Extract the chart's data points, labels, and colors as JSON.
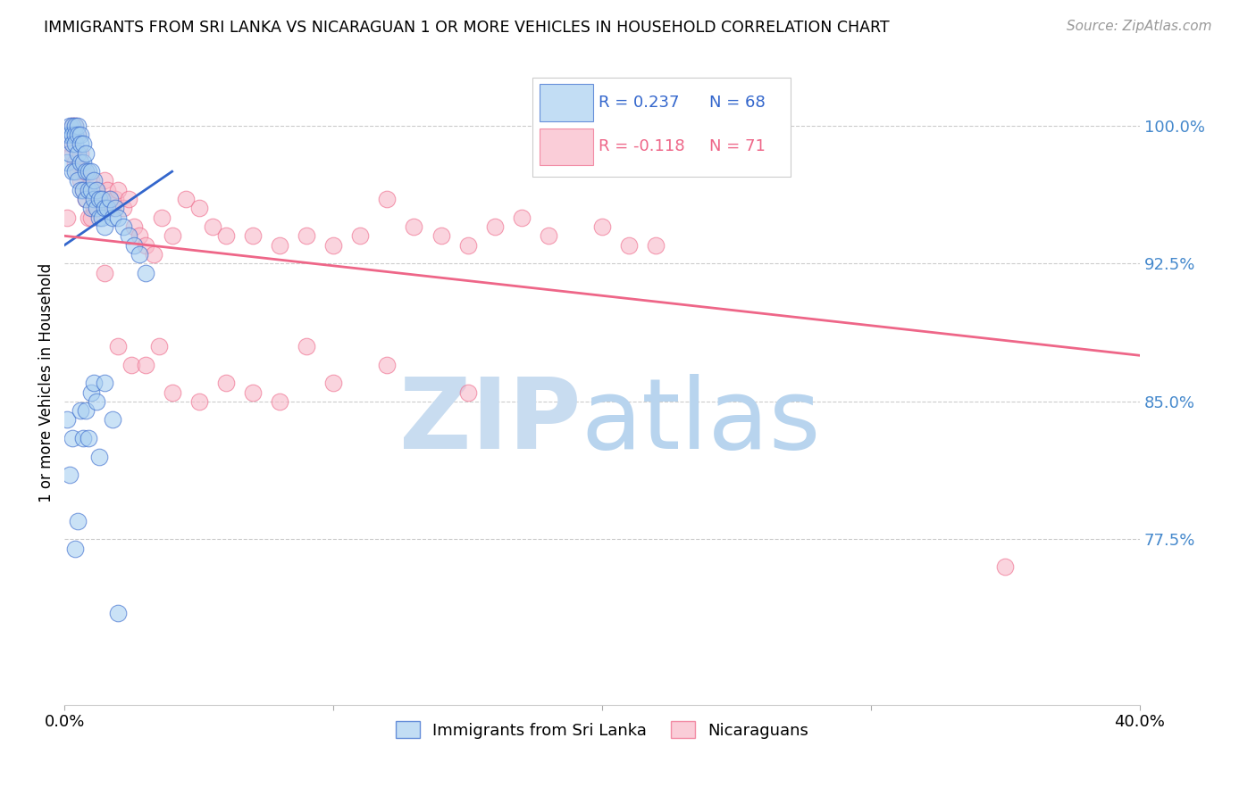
{
  "title": "IMMIGRANTS FROM SRI LANKA VS NICARAGUAN 1 OR MORE VEHICLES IN HOUSEHOLD CORRELATION CHART",
  "source": "Source: ZipAtlas.com",
  "ylabel": "1 or more Vehicles in Household",
  "ytick_labels": [
    "100.0%",
    "92.5%",
    "85.0%",
    "77.5%"
  ],
  "ytick_values": [
    1.0,
    0.925,
    0.85,
    0.775
  ],
  "xlim": [
    0.0,
    0.4
  ],
  "ylim": [
    0.685,
    1.035
  ],
  "color_blue": "#a8cff0",
  "color_pink": "#f8b8c8",
  "line_blue": "#3366cc",
  "line_pink": "#ee6688",
  "watermark_zip_color": "#c8dcf0",
  "watermark_atlas_color": "#b8d4ee",
  "sri_lanka_x": [
    0.001,
    0.001,
    0.002,
    0.002,
    0.002,
    0.003,
    0.003,
    0.003,
    0.003,
    0.004,
    0.004,
    0.004,
    0.004,
    0.005,
    0.005,
    0.005,
    0.005,
    0.006,
    0.006,
    0.006,
    0.006,
    0.007,
    0.007,
    0.007,
    0.008,
    0.008,
    0.008,
    0.009,
    0.009,
    0.01,
    0.01,
    0.01,
    0.011,
    0.011,
    0.012,
    0.012,
    0.013,
    0.013,
    0.014,
    0.014,
    0.015,
    0.015,
    0.016,
    0.017,
    0.018,
    0.019,
    0.02,
    0.022,
    0.024,
    0.026,
    0.028,
    0.03,
    0.001,
    0.002,
    0.003,
    0.004,
    0.005,
    0.006,
    0.007,
    0.008,
    0.009,
    0.01,
    0.011,
    0.012,
    0.013,
    0.015,
    0.018,
    0.02
  ],
  "sri_lanka_y": [
    0.995,
    0.98,
    1.0,
    0.995,
    0.985,
    1.0,
    0.995,
    0.99,
    0.975,
    1.0,
    0.995,
    0.99,
    0.975,
    1.0,
    0.995,
    0.985,
    0.97,
    0.995,
    0.99,
    0.98,
    0.965,
    0.99,
    0.98,
    0.965,
    0.985,
    0.975,
    0.96,
    0.975,
    0.965,
    0.975,
    0.965,
    0.955,
    0.97,
    0.96,
    0.965,
    0.955,
    0.96,
    0.95,
    0.96,
    0.95,
    0.955,
    0.945,
    0.955,
    0.96,
    0.95,
    0.955,
    0.95,
    0.945,
    0.94,
    0.935,
    0.93,
    0.92,
    0.84,
    0.81,
    0.83,
    0.77,
    0.785,
    0.845,
    0.83,
    0.845,
    0.83,
    0.855,
    0.86,
    0.85,
    0.82,
    0.86,
    0.84,
    0.735
  ],
  "nicaraguan_x": [
    0.001,
    0.002,
    0.003,
    0.003,
    0.004,
    0.004,
    0.005,
    0.005,
    0.006,
    0.006,
    0.007,
    0.007,
    0.008,
    0.008,
    0.009,
    0.009,
    0.01,
    0.01,
    0.011,
    0.012,
    0.012,
    0.013,
    0.014,
    0.015,
    0.016,
    0.017,
    0.018,
    0.019,
    0.02,
    0.022,
    0.024,
    0.026,
    0.028,
    0.03,
    0.033,
    0.036,
    0.04,
    0.045,
    0.05,
    0.055,
    0.06,
    0.07,
    0.08,
    0.09,
    0.1,
    0.11,
    0.12,
    0.13,
    0.14,
    0.15,
    0.16,
    0.17,
    0.18,
    0.2,
    0.21,
    0.22,
    0.015,
    0.02,
    0.025,
    0.03,
    0.035,
    0.04,
    0.05,
    0.06,
    0.07,
    0.08,
    0.09,
    0.1,
    0.12,
    0.15,
    0.35
  ],
  "nicaraguan_y": [
    0.95,
    0.99,
    1.0,
    0.985,
    1.0,
    0.98,
    0.975,
    0.995,
    0.985,
    0.97,
    0.975,
    0.965,
    0.975,
    0.96,
    0.965,
    0.95,
    0.97,
    0.95,
    0.955,
    0.965,
    0.955,
    0.96,
    0.96,
    0.97,
    0.965,
    0.96,
    0.955,
    0.96,
    0.965,
    0.955,
    0.96,
    0.945,
    0.94,
    0.935,
    0.93,
    0.95,
    0.94,
    0.96,
    0.955,
    0.945,
    0.94,
    0.94,
    0.935,
    0.94,
    0.935,
    0.94,
    0.96,
    0.945,
    0.94,
    0.935,
    0.945,
    0.95,
    0.94,
    0.945,
    0.935,
    0.935,
    0.92,
    0.88,
    0.87,
    0.87,
    0.88,
    0.855,
    0.85,
    0.86,
    0.855,
    0.85,
    0.88,
    0.86,
    0.87,
    0.855,
    0.76
  ],
  "sl_line_x": [
    0.0,
    0.04
  ],
  "sl_line_y": [
    0.935,
    0.975
  ],
  "nic_line_x": [
    0.0,
    0.4
  ],
  "nic_line_y": [
    0.94,
    0.875
  ]
}
